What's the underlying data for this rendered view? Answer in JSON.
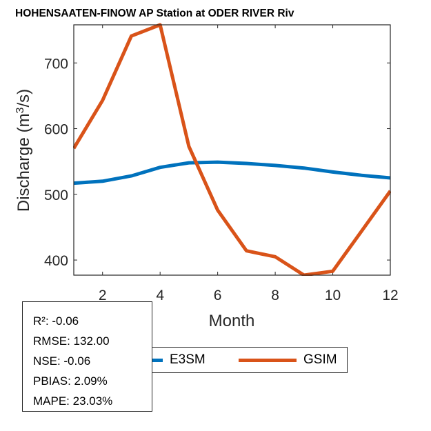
{
  "chart_data": {
    "type": "line",
    "title": "HOHENSAATEN-FINOW AP  Station at  ODER RIVER  Riv",
    "xlabel": "Month",
    "ylabel": "Discharge (m3/s)",
    "ylabel_parts": {
      "pre": "Discharge (m",
      "sup": "3",
      "post": "/s)"
    },
    "xlim": [
      1,
      12
    ],
    "ylim": [
      377,
      758
    ],
    "x_ticks": [
      2,
      4,
      6,
      8,
      10,
      12
    ],
    "y_ticks": [
      400,
      500,
      600,
      700
    ],
    "x_tick_labels": [
      "2",
      "4",
      "6",
      "8",
      "10",
      "12"
    ],
    "y_tick_labels": [
      "400",
      "500",
      "600",
      "700"
    ],
    "grid": false,
    "x": [
      1,
      2,
      3,
      4,
      5,
      6,
      7,
      8,
      9,
      10,
      11,
      12
    ],
    "series": [
      {
        "name": "E3SM",
        "color": "#0072BD",
        "values": [
          517,
          520,
          528,
          541,
          548,
          549,
          547,
          544,
          540,
          534,
          529,
          525
        ]
      },
      {
        "name": "GSIM",
        "color": "#D95319",
        "values": [
          570,
          643,
          741,
          758,
          573,
          476,
          414,
          405,
          377,
          383,
          444,
          505
        ]
      }
    ],
    "legend": {
      "placement": "bottom-center",
      "entries": [
        "E3SM",
        "GSIM"
      ]
    }
  },
  "stats": {
    "lines": [
      "R²: -0.06",
      "RMSE: 132.00",
      "NSE: -0.06",
      "PBIAS: 2.09%",
      "MAPE: 23.03%"
    ]
  }
}
